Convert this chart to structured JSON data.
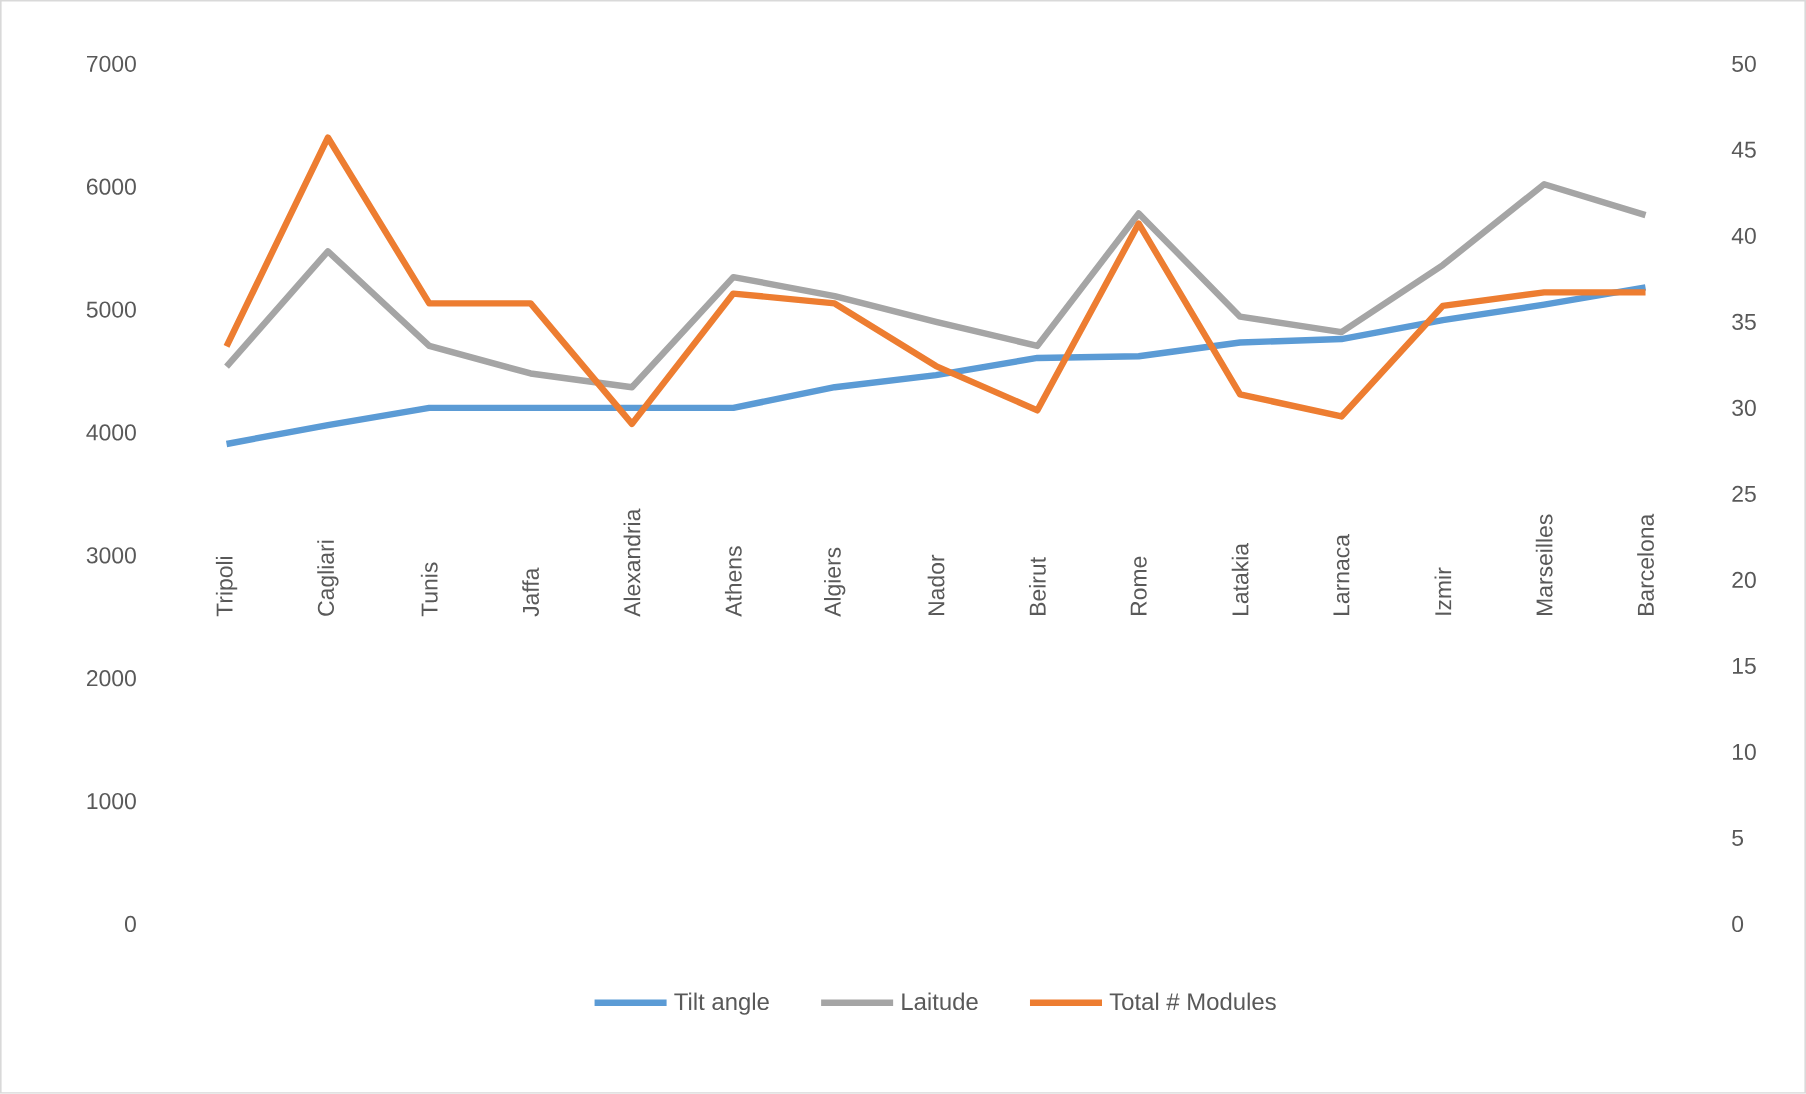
{
  "chart_data": {
    "type": "line",
    "categories": [
      "Tripoli",
      "Cagliari",
      "Tunis",
      "Jaffa",
      "Alexandria",
      "Athens",
      "Algiers",
      "Nador",
      "Beirut",
      "Rome",
      "Latakia",
      "Larnaca",
      "Izmir",
      "Marseilles",
      "Barcelona"
    ],
    "series": [
      {
        "name": "Tilt angle",
        "color": "#5b9bd5",
        "axis": "y2",
        "values": [
          27.9,
          29.0,
          30.0,
          30.0,
          30.0,
          30.0,
          31.2,
          31.9,
          32.9,
          33.0,
          33.8,
          34.0,
          35.1,
          36.0,
          37.0
        ]
      },
      {
        "name": "Laitude",
        "color": "#a5a5a5",
        "axis": "y2",
        "values": [
          32.4,
          39.1,
          33.6,
          32.0,
          31.2,
          37.6,
          36.5,
          35.0,
          33.6,
          41.3,
          35.3,
          34.4,
          38.3,
          43.0,
          41.2
        ]
      },
      {
        "name": "Total # Modules",
        "color": "#ed7d31",
        "values": [
          4700,
          6400,
          5050,
          5050,
          4070,
          5130,
          5050,
          4540,
          4180,
          5700,
          4310,
          4130,
          5030,
          5140,
          5140
        ]
      }
    ],
    "ylim": [
      0,
      7000
    ],
    "yticks": [
      0,
      1000,
      2000,
      3000,
      4000,
      5000,
      6000,
      7000
    ],
    "y2lim": [
      0,
      50
    ],
    "y2ticks": [
      0,
      5,
      10,
      15,
      20,
      25,
      30,
      35,
      40,
      45,
      50
    ],
    "legend": "bottom"
  }
}
